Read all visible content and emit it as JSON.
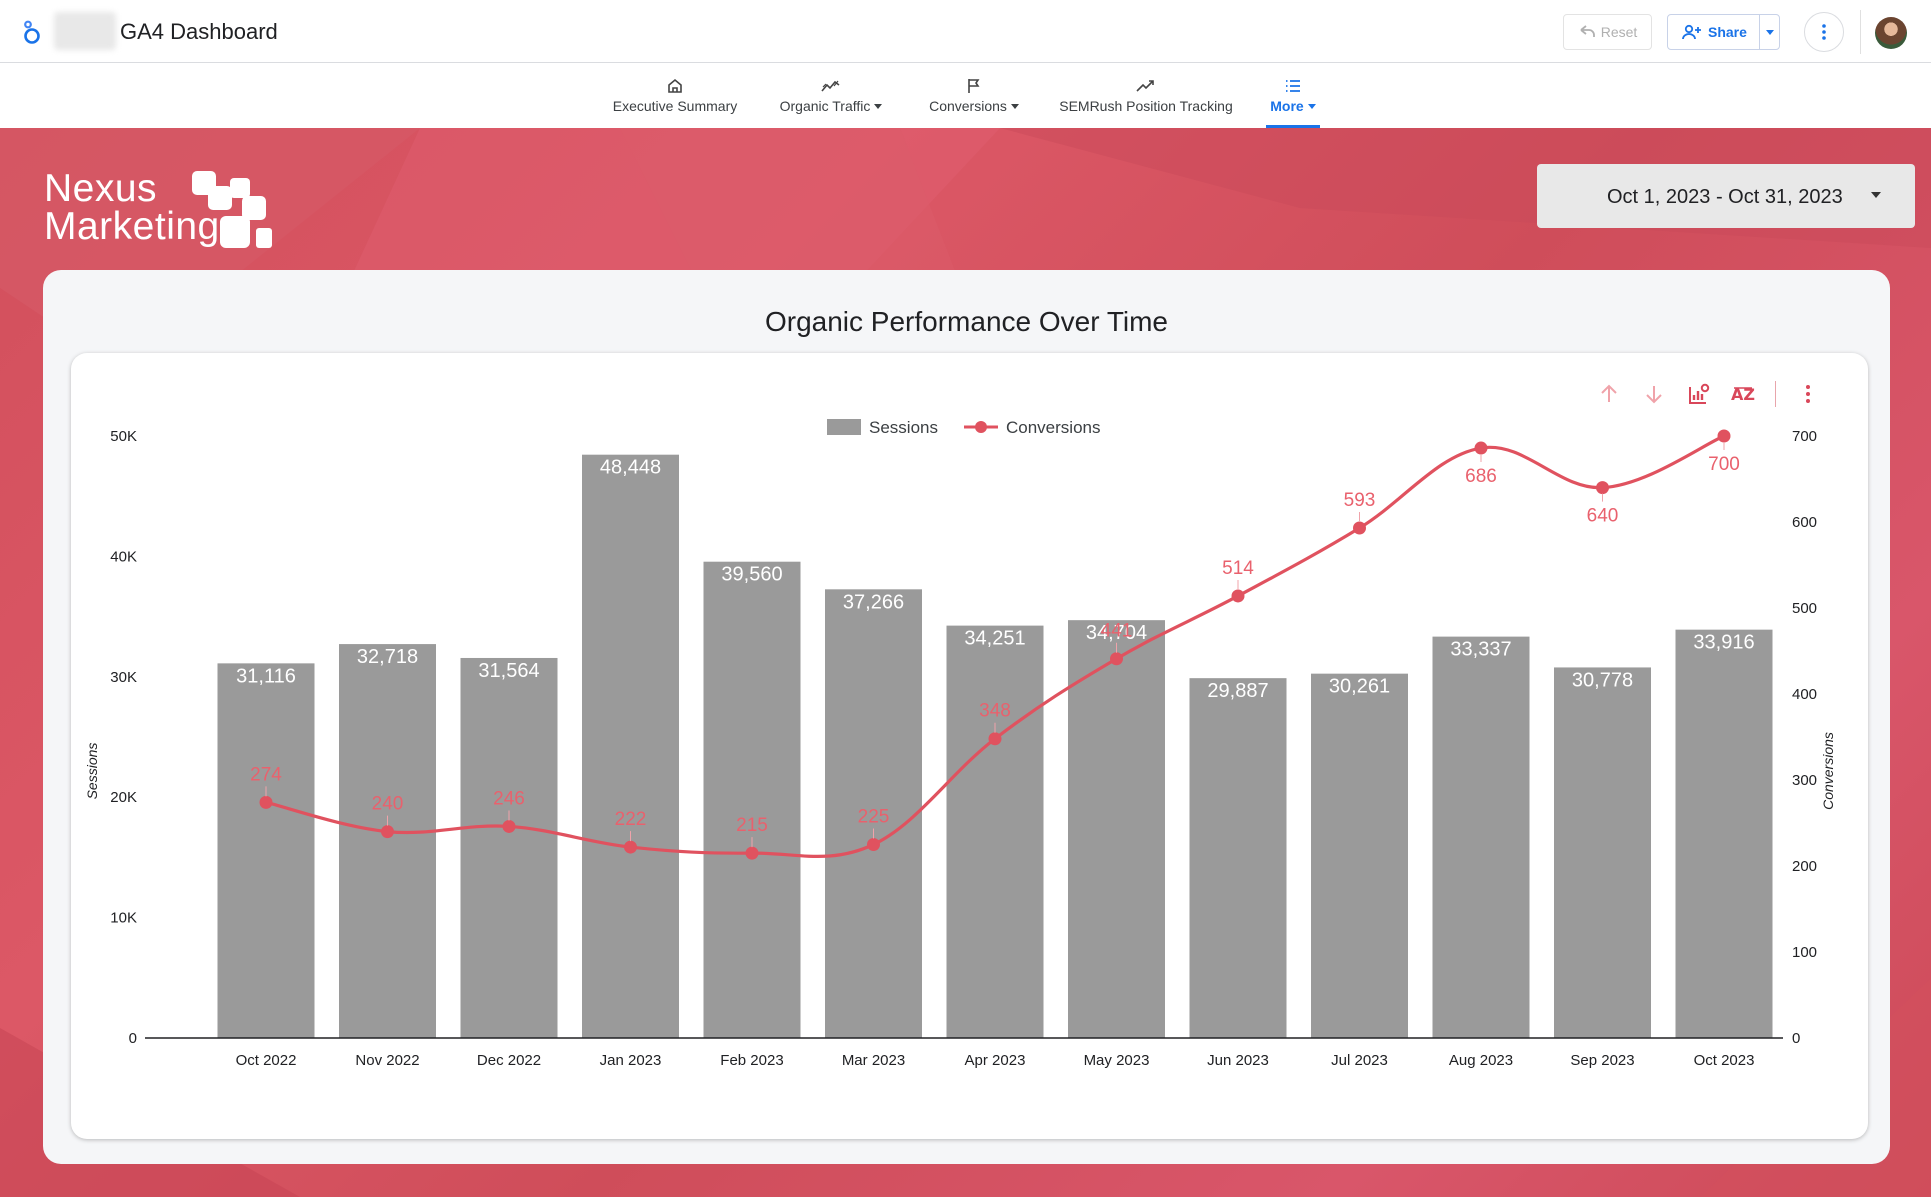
{
  "header": {
    "report_title": "GA4 Dashboard",
    "reset_label": "Reset",
    "share_label": "Share"
  },
  "nav": {
    "items": [
      {
        "label": "Executive Summary",
        "icon": "home-icon",
        "dropdown": false,
        "active": false
      },
      {
        "label": "Organic Traffic",
        "icon": "trending-icon",
        "dropdown": true,
        "active": false
      },
      {
        "label": "Conversions",
        "icon": "flag-icon",
        "dropdown": true,
        "active": false
      },
      {
        "label": "SEMRush Position Tracking",
        "icon": "trending-up-icon",
        "dropdown": false,
        "active": false
      },
      {
        "label": "More",
        "icon": "list-icon",
        "dropdown": true,
        "active": true
      }
    ]
  },
  "brand": {
    "line1": "Nexus",
    "line2": "Marketing",
    "accent_color": "#d9566a"
  },
  "date_range": {
    "label": "Oct 1, 2023 - Oct 31, 2023"
  },
  "chart": {
    "panel_title": "Organic Performance Over Time"
  },
  "chart_data": {
    "type": "bar",
    "title": "Organic Performance Over Time",
    "categories": [
      "Oct 2022",
      "Nov 2022",
      "Dec 2022",
      "Jan 2023",
      "Feb 2023",
      "Mar 2023",
      "Apr 2023",
      "May 2023",
      "Jun 2023",
      "Jul 2023",
      "Aug 2023",
      "Sep 2023",
      "Oct 2023"
    ],
    "series": [
      {
        "name": "Sessions",
        "type": "bar",
        "axis": "left",
        "color": "#9a9a9a",
        "values": [
          31116,
          32718,
          31564,
          48448,
          39560,
          37266,
          34251,
          34704,
          29887,
          30261,
          33337,
          30778,
          33916
        ],
        "labels": [
          "31,116",
          "32,718",
          "31,564",
          "48,448",
          "39,560",
          "37,266",
          "34,251",
          "34,704",
          "29,887",
          "30,261",
          "33,337",
          "30,778",
          "33,916"
        ]
      },
      {
        "name": "Conversions",
        "type": "line",
        "axis": "right",
        "color": "#e0525f",
        "values": [
          274,
          240,
          246,
          222,
          215,
          225,
          348,
          441,
          514,
          593,
          686,
          640,
          700
        ],
        "labels": [
          "274",
          "240",
          "246",
          "222",
          "215",
          "225",
          "348",
          "441",
          "514",
          "593",
          "686",
          "640",
          "700"
        ]
      }
    ],
    "y_left": {
      "label": "Sessions",
      "ylim": [
        0,
        50000
      ],
      "ticks": [
        "0",
        "10K",
        "20K",
        "30K",
        "40K",
        "50K"
      ]
    },
    "y_right": {
      "label": "Conversions",
      "ylim": [
        0,
        700
      ],
      "ticks": [
        "0",
        "100",
        "200",
        "300",
        "400",
        "500",
        "600",
        "700"
      ]
    },
    "legend_position": "top-center",
    "grid": false
  }
}
